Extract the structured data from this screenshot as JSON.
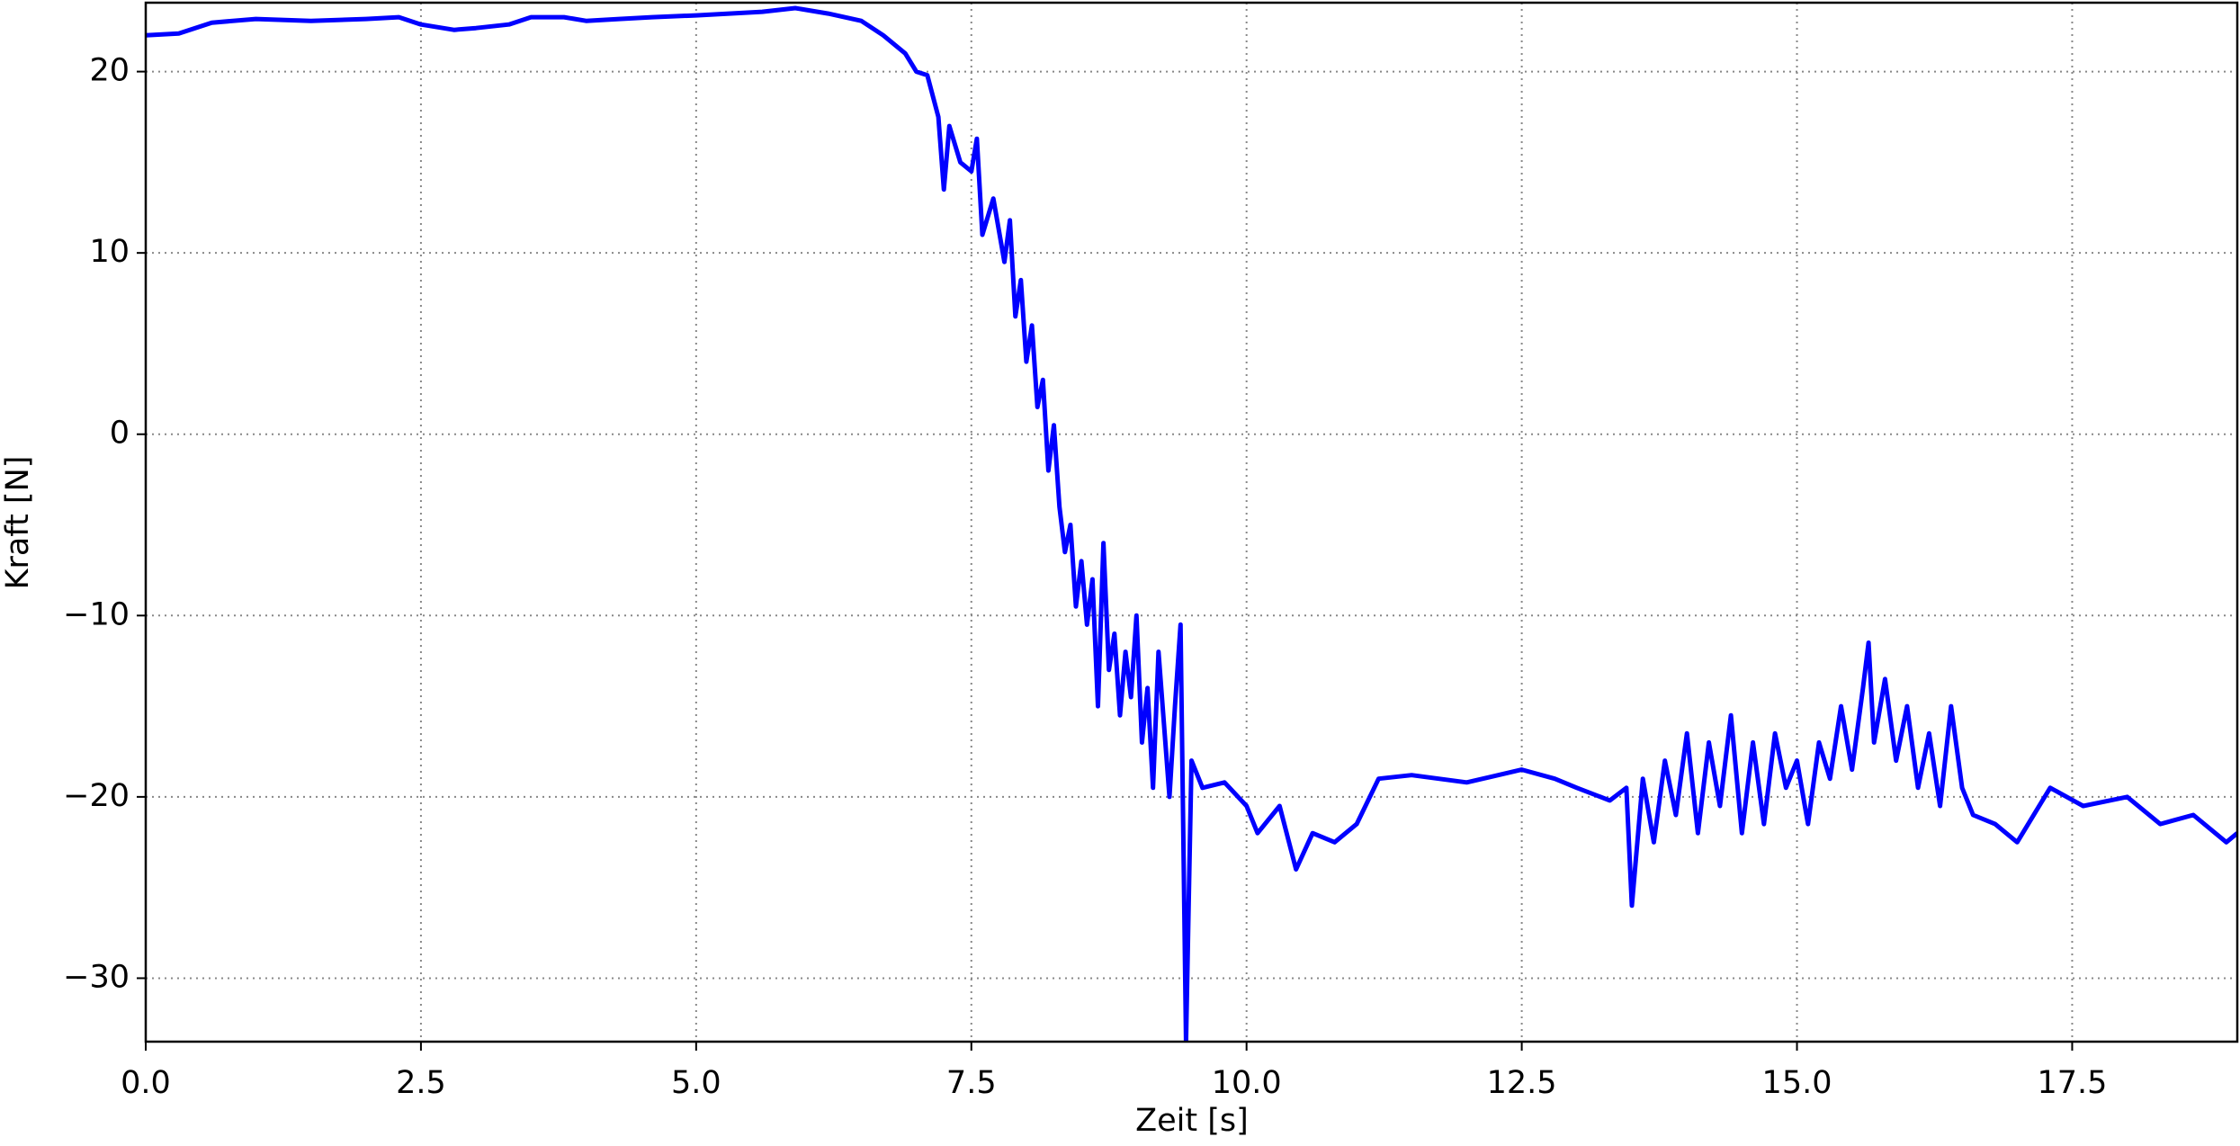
{
  "chart_data": {
    "type": "line",
    "xlabel": "Zeit [s]",
    "ylabel": "Kraft [N]",
    "x": [
      0.0,
      0.3,
      0.6,
      1.0,
      1.5,
      2.0,
      2.3,
      2.5,
      2.8,
      3.0,
      3.3,
      3.5,
      3.8,
      4.0,
      4.3,
      4.6,
      5.0,
      5.3,
      5.6,
      5.9,
      6.2,
      6.5,
      6.7,
      6.9,
      7.0,
      7.1,
      7.2,
      7.25,
      7.3,
      7.4,
      7.5,
      7.55,
      7.6,
      7.7,
      7.8,
      7.85,
      7.9,
      7.95,
      8.0,
      8.05,
      8.1,
      8.15,
      8.2,
      8.25,
      8.3,
      8.35,
      8.4,
      8.45,
      8.5,
      8.55,
      8.6,
      8.65,
      8.7,
      8.75,
      8.8,
      8.85,
      8.9,
      8.95,
      9.0,
      9.05,
      9.1,
      9.15,
      9.2,
      9.25,
      9.3,
      9.35,
      9.4,
      9.45,
      9.48,
      9.5,
      9.6,
      9.8,
      10.0,
      10.1,
      10.3,
      10.45,
      10.6,
      10.8,
      11.0,
      11.2,
      11.5,
      12.0,
      12.5,
      12.8,
      13.0,
      13.3,
      13.45,
      13.5,
      13.6,
      13.7,
      13.8,
      13.9,
      14.0,
      14.1,
      14.2,
      14.3,
      14.4,
      14.5,
      14.6,
      14.7,
      14.8,
      14.9,
      15.0,
      15.1,
      15.2,
      15.3,
      15.4,
      15.5,
      15.6,
      15.65,
      15.7,
      15.8,
      15.9,
      16.0,
      16.1,
      16.2,
      16.3,
      16.4,
      16.5,
      16.6,
      16.8,
      17.0,
      17.3,
      17.6,
      18.0,
      18.3,
      18.6,
      18.9,
      19.0
    ],
    "values": [
      22.0,
      22.1,
      22.7,
      22.9,
      22.8,
      22.9,
      23.0,
      22.6,
      22.3,
      22.4,
      22.6,
      23.0,
      23.0,
      22.8,
      22.9,
      23.0,
      23.1,
      23.2,
      23.3,
      23.5,
      23.2,
      22.8,
      22.0,
      21.0,
      20.0,
      19.8,
      17.5,
      13.5,
      17,
      15,
      14.5,
      16.3,
      11,
      13,
      9.5,
      11.8,
      6.5,
      8.5,
      4,
      6,
      1.5,
      3.0,
      -2,
      0.5,
      -4,
      -6.5,
      -5,
      -9.5,
      -7,
      -10.5,
      -8,
      -15,
      -6,
      -13,
      -11,
      -15.5,
      -12,
      -14.5,
      -10,
      -17,
      -14,
      -19.5,
      -12,
      -16,
      -20,
      -15,
      -10.5,
      -33.5,
      -24,
      -18,
      -19.5,
      -19.2,
      -20.5,
      -22,
      -20.5,
      -24,
      -22,
      -22.5,
      -21.5,
      -19,
      -18.8,
      -19.2,
      -18.5,
      -19,
      -19.5,
      -20.2,
      -19.5,
      -26,
      -19,
      -22.5,
      -18,
      -21,
      -16.5,
      -22,
      -17,
      -20.5,
      -15.5,
      -22,
      -17,
      -21.5,
      -16.5,
      -19.5,
      -18,
      -21.5,
      -17,
      -19,
      -15,
      -18.5,
      -14,
      -11.5,
      -17,
      -13.5,
      -18,
      -15,
      -19.5,
      -16.5,
      -20.5,
      -15,
      -19.5,
      -21,
      -21.5,
      -22.5,
      -19.5,
      -20.5,
      -20,
      -21.5,
      -21,
      -22.5,
      -22
    ],
    "color": "#0000ff",
    "xlim": [
      0,
      19.0
    ],
    "ylim": [
      -33.5,
      23.8
    ],
    "xticks": [
      {
        "value": 0,
        "label": "0.0"
      },
      2.5,
      {
        "value": 5,
        "label": "5.0"
      },
      7.5,
      {
        "value": 10,
        "label": "10.0"
      },
      12.5,
      {
        "value": 15,
        "label": "15.0"
      },
      17.5
    ],
    "yticks": [
      {
        "value": -30,
        "label": "−30"
      },
      {
        "value": -20,
        "label": "−20"
      },
      {
        "value": -10,
        "label": "−10"
      },
      0,
      10,
      20
    ],
    "grid": true
  }
}
